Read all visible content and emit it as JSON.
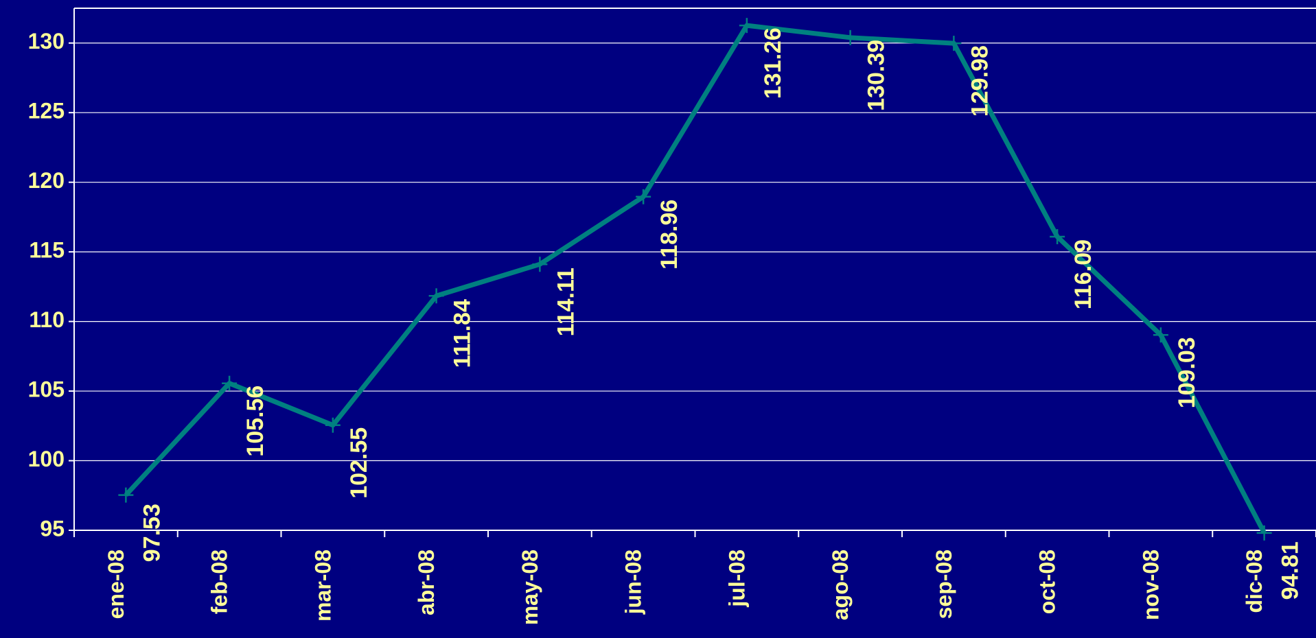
{
  "chart_data": {
    "type": "line",
    "categories": [
      "ene-08",
      "feb-08",
      "mar-08",
      "abr-08",
      "may-08",
      "jun-08",
      "jul-08",
      "ago-08",
      "sep-08",
      "oct-08",
      "nov-08",
      "dic-08"
    ],
    "series": [
      {
        "color": "#008080",
        "values": [
          97.53,
          105.56,
          102.55,
          111.84,
          114.11,
          118.96,
          131.26,
          130.39,
          129.98,
          116.09,
          109.03,
          94.81
        ]
      }
    ],
    "ylim": [
      95,
      132.5
    ],
    "yticks": [
      95,
      100,
      105,
      110,
      115,
      120,
      125,
      130
    ],
    "grid": true
  }
}
